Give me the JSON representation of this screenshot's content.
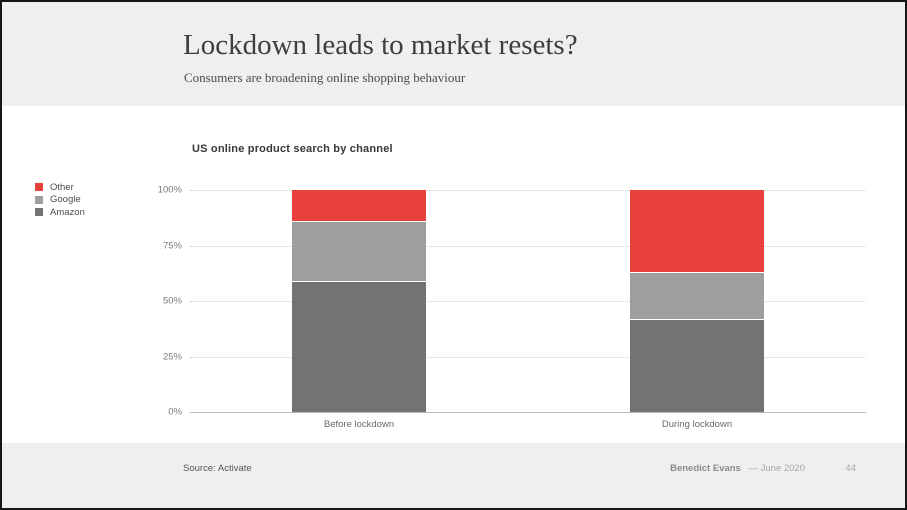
{
  "slide": {
    "title": "Lockdown leads to market resets?",
    "subtitle": "Consumers are broadening online shopping behaviour"
  },
  "chart": {
    "title": "US online product search by channel"
  },
  "chart_data": {
    "type": "bar",
    "stacked": true,
    "title": "US online product search by channel",
    "categories": [
      "Before lockdown",
      "During lockdown"
    ],
    "series": [
      {
        "name": "Amazon",
        "color": "#737373",
        "values": [
          59,
          42
        ]
      },
      {
        "name": "Google",
        "color": "#9e9e9e",
        "values": [
          27,
          21
        ]
      },
      {
        "name": "Other",
        "color": "#e8413c",
        "values": [
          14,
          37
        ]
      }
    ],
    "unit": "%",
    "ylim": [
      0,
      100
    ],
    "yticks": [
      0,
      25,
      50,
      75,
      100
    ],
    "ytick_labels": [
      "0%",
      "25%",
      "50%",
      "75%",
      "100%"
    ],
    "legend_order": [
      "Other",
      "Google",
      "Amazon"
    ],
    "legend_position": "left",
    "grid": "horizontal-dotted"
  },
  "footer": {
    "source": "Source: Activate",
    "author": "Benedict Evans",
    "date": "— June 2020",
    "page_number": "44"
  }
}
